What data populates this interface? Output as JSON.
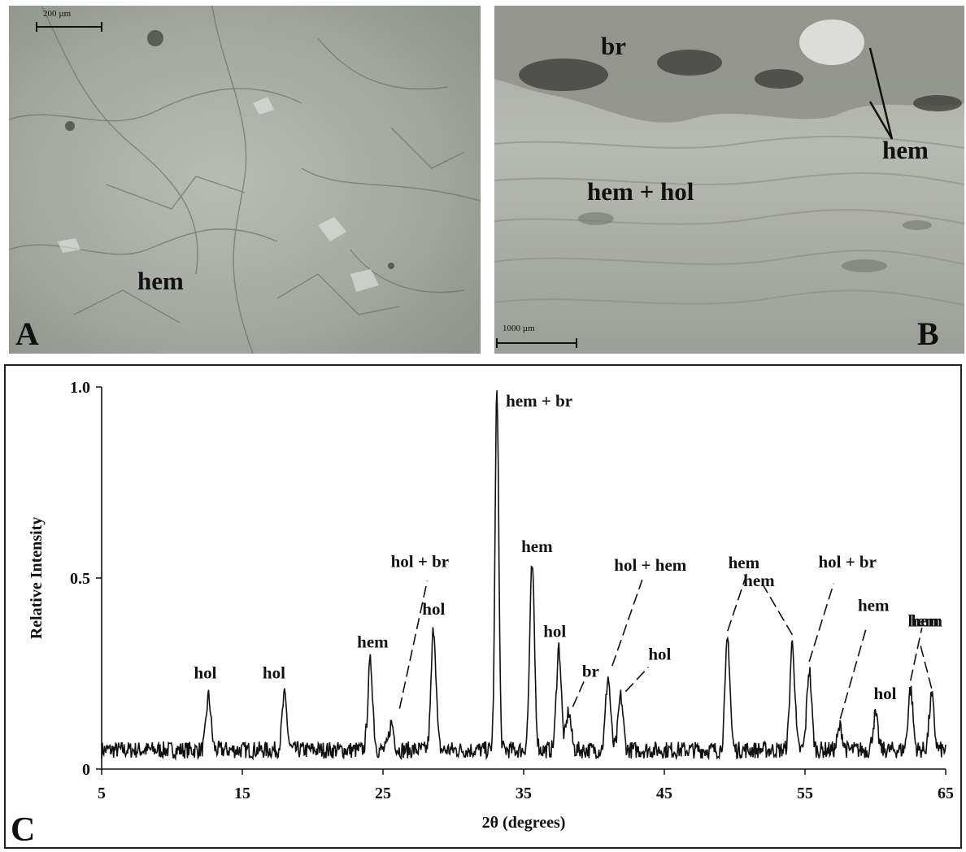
{
  "panels": {
    "a": {
      "letter": "A",
      "scale_label": "200 µm",
      "mineral_label": "hem"
    },
    "b": {
      "letter": "B",
      "scale_label": "1000 µm",
      "labels": {
        "br": "br",
        "hem": "hem",
        "hem_hol": "hem + hol"
      }
    }
  },
  "chart_data": {
    "type": "line",
    "panel_letter": "C",
    "xlabel": "2θ (degrees)",
    "ylabel": "Relative Intensity",
    "xlim": [
      5,
      65
    ],
    "ylim": [
      0,
      1.0
    ],
    "x_ticks": [
      5,
      15,
      25,
      35,
      45,
      55,
      65
    ],
    "y_ticks": [
      "0",
      "0.5",
      "1.0"
    ],
    "grid": false,
    "baseline": 0.05,
    "peaks": [
      {
        "two_theta": 12.6,
        "intensity": 0.19,
        "label": "hol"
      },
      {
        "two_theta": 18.0,
        "intensity": 0.19,
        "label": "hol"
      },
      {
        "two_theta": 24.1,
        "intensity": 0.28,
        "label": "hem"
      },
      {
        "two_theta": 25.6,
        "intensity": 0.12,
        "label": "hol + br"
      },
      {
        "two_theta": 28.6,
        "intensity": 0.37,
        "label": "hol"
      },
      {
        "two_theta": 33.1,
        "intensity": 1.0,
        "label": "hem + br"
      },
      {
        "two_theta": 35.6,
        "intensity": 0.53,
        "label": "hem"
      },
      {
        "two_theta": 37.5,
        "intensity": 0.32,
        "label": "hol"
      },
      {
        "two_theta": 38.2,
        "intensity": 0.15,
        "label": "br"
      },
      {
        "two_theta": 41.0,
        "intensity": 0.24,
        "label": "hol + hem"
      },
      {
        "two_theta": 41.9,
        "intensity": 0.19,
        "label": "hol"
      },
      {
        "two_theta": 49.5,
        "intensity": 0.34,
        "label": "hem"
      },
      {
        "two_theta": 54.1,
        "intensity": 0.33,
        "label": "hem"
      },
      {
        "two_theta": 55.3,
        "intensity": 0.26,
        "label": "hol + br"
      },
      {
        "two_theta": 57.5,
        "intensity": 0.11,
        "label": "hem"
      },
      {
        "two_theta": 60.0,
        "intensity": 0.14,
        "label": "hol"
      },
      {
        "two_theta": 62.5,
        "intensity": 0.21,
        "label": "hem"
      },
      {
        "two_theta": 64.0,
        "intensity": 0.19,
        "label": "hem"
      }
    ]
  }
}
